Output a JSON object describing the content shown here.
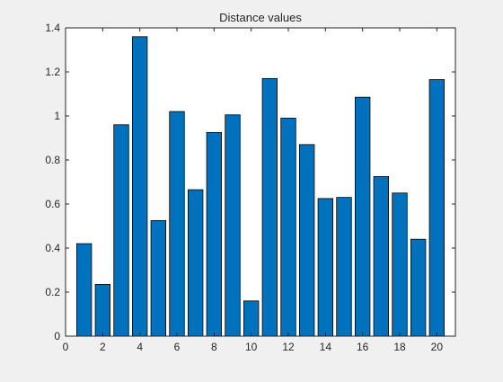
{
  "chart_data": {
    "type": "bar",
    "title": "Distance values",
    "xlabel": "",
    "ylabel": "",
    "categories": [
      1,
      2,
      3,
      4,
      5,
      6,
      7,
      8,
      9,
      10,
      11,
      12,
      13,
      14,
      15,
      16,
      17,
      18,
      19,
      20
    ],
    "values": [
      0.42,
      0.235,
      0.96,
      1.36,
      0.525,
      1.02,
      0.665,
      0.925,
      1.005,
      0.16,
      1.17,
      0.99,
      0.87,
      0.625,
      0.63,
      1.085,
      0.725,
      0.65,
      0.44,
      1.165
    ],
    "xlim": [
      0,
      21
    ],
    "ylim": [
      0,
      1.4
    ],
    "xticks": [
      "0",
      "2",
      "4",
      "6",
      "8",
      "10",
      "12",
      "14",
      "16",
      "18",
      "20"
    ],
    "yticks": [
      "0",
      "0.2",
      "0.4",
      "0.6",
      "0.8",
      "1",
      "1.2",
      "1.4"
    ],
    "grid": false,
    "bar_color": "#0072BD",
    "bar_edge_color": "#000000",
    "axes_background": "#ffffff"
  }
}
